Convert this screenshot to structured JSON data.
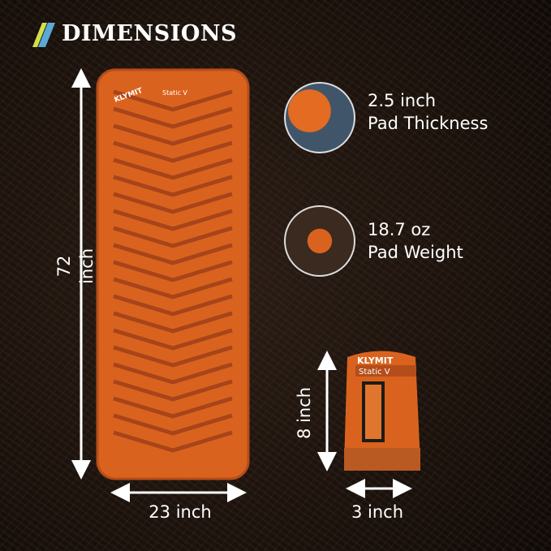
{
  "header": {
    "title": "DIMENSIONS",
    "accent_colors": [
      "#d4e04a",
      "#5aa9d6"
    ]
  },
  "mat": {
    "brand": "KLYMIT",
    "model": "Static V",
    "color": "#d9631e",
    "length_label": "72 inch",
    "width_label": "23 inch"
  },
  "specs": [
    {
      "value": "2.5 inch",
      "label": "Pad Thickness",
      "icon": "pad-thickness-photo"
    },
    {
      "value": "18.7 oz",
      "label": "Pad Weight",
      "icon": "packed-pad-photo"
    }
  ],
  "stuff_sack": {
    "brand": "KLYMIT",
    "model": "Static V",
    "height_label": "8 inch",
    "width_label": "3 inch"
  }
}
